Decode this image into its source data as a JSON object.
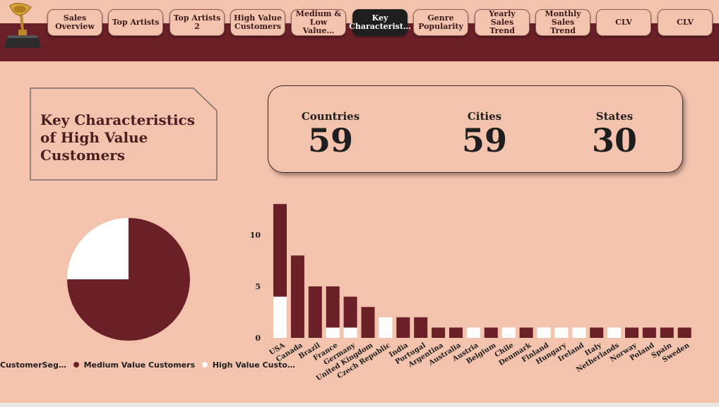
{
  "colors": {
    "background": "#f4c3ad",
    "header": "#6b2028",
    "medium_value": "#6b2028",
    "high_value": "#ffffff",
    "active_tab": "#1f1f1f"
  },
  "logo": {
    "icon": "gramophone-icon"
  },
  "tabs": [
    {
      "label": "Sales\nOverview",
      "active": false
    },
    {
      "label": "Top Artists",
      "active": false
    },
    {
      "label": "Top Artists 2",
      "active": false
    },
    {
      "label": "High Value\nCustomers",
      "active": false
    },
    {
      "label": "Medium &\nLow Value…",
      "active": false
    },
    {
      "label": "Key\nCharacterist…",
      "active": true
    },
    {
      "label": "Genre\nPopularity",
      "active": false
    },
    {
      "label": "Yearly Sales\nTrend",
      "active": false
    },
    {
      "label": "Monthly\nSales Trend",
      "active": false
    },
    {
      "label": "CLV",
      "active": false
    },
    {
      "label": "CLV",
      "active": false
    }
  ],
  "title_card": {
    "text": "Key Characteristics\nof  High Value\nCustomers"
  },
  "kpis": [
    {
      "label": "Countries",
      "value": "59"
    },
    {
      "label": "Cities",
      "value": "59"
    },
    {
      "label": "States",
      "value": "30"
    }
  ],
  "legend": {
    "title": "CustomerSeg…",
    "items": [
      {
        "label": "Medium Value Customers",
        "color": "#6b2028"
      },
      {
        "label": "High Value Custo…",
        "color": "#ffffff"
      }
    ]
  },
  "chart_data": [
    {
      "type": "pie",
      "series": [
        {
          "name": "Medium Value Customers",
          "value": 75,
          "color": "#6b2028"
        },
        {
          "name": "High Value Customers",
          "value": 25,
          "color": "#ffffff"
        }
      ]
    },
    {
      "type": "bar",
      "stacked": true,
      "categories": [
        "USA",
        "Canada",
        "Brazil",
        "France",
        "Germany",
        "United Kingdom",
        "Czech Republic",
        "India",
        "Portugal",
        "Argentina",
        "Australia",
        "Austria",
        "Belgium",
        "Chile",
        "Denmark",
        "Finland",
        "Hungary",
        "Ireland",
        "Italy",
        "Netherlands",
        "Norway",
        "Poland",
        "Spain",
        "Sweden"
      ],
      "series": [
        {
          "name": "High Value Customers",
          "color": "#ffffff",
          "values": [
            4,
            0,
            0,
            1,
            1,
            0,
            2,
            0,
            0,
            0,
            0,
            1,
            0,
            1,
            0,
            1,
            1,
            1,
            0,
            1,
            0,
            0,
            0,
            0
          ]
        },
        {
          "name": "Medium Value Customers",
          "color": "#6b2028",
          "values": [
            9,
            8,
            5,
            4,
            3,
            3,
            0,
            2,
            2,
            1,
            1,
            0,
            1,
            0,
            1,
            0,
            0,
            0,
            1,
            0,
            1,
            1,
            1,
            1
          ]
        }
      ],
      "yticks": [
        0,
        5,
        10
      ],
      "ylim": [
        0,
        13
      ]
    }
  ]
}
